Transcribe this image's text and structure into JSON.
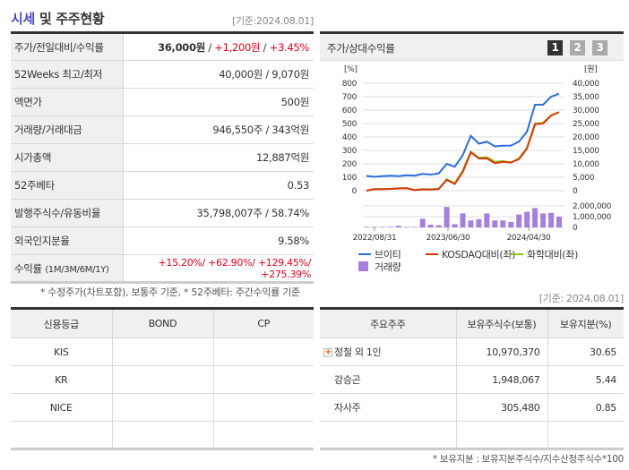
{
  "title": {
    "part1": "시세",
    "part2": " 및 주주현황",
    "basis": "[기준:2024.08.01]"
  },
  "summary": [
    {
      "label": "주가/전일대비/수익률",
      "price": "36,000원",
      "change": "+1,200원",
      "rate": "+3.45%"
    },
    {
      "label": "52Weeks 최고/최저",
      "value": "40,000원 / 9,070원"
    },
    {
      "label": "액면가",
      "value": "500원"
    },
    {
      "label": "거래량/거래대금",
      "value": "946,550주 / 343억원"
    },
    {
      "label": "시가총액",
      "value": "12,887억원"
    },
    {
      "label": "52주베타",
      "value": "0.53"
    },
    {
      "label": "발행주식수/유동비율",
      "value": "35,798,007주 / 58.74%"
    },
    {
      "label": "외국인지분율",
      "value": "9.58%"
    },
    {
      "label": "수익률",
      "label_sub": "(1M/3M/6M/1Y)",
      "value": "+15.20%/ +62.90%/ +129.45%/ +275.39%"
    }
  ],
  "summary_note": "* 수정주가(차트포함), 보통주 기준, * 52주베타: 주간수익률 기준",
  "chart_panel": {
    "title": "주가/상대수익률",
    "pages": [
      "1",
      "2",
      "3"
    ],
    "active_page": "1"
  },
  "chart_data": {
    "type": "line",
    "left_unit": "[%]",
    "right_unit": "[원]",
    "left_ticks": [
      "800",
      "700",
      "600",
      "500",
      "400",
      "300",
      "200",
      "100",
      "0"
    ],
    "right_ticks": [
      "40,000",
      "35,000",
      "30,000",
      "25,000",
      "20,000",
      "15,000",
      "10,000",
      "5,000",
      "0"
    ],
    "volume_ticks": [
      "2,000,000",
      "1,000,000",
      "0"
    ],
    "x_labels": [
      "2022/08/31",
      "2023/06/30",
      "2024/04/30"
    ],
    "ylim_left": [
      0,
      800
    ],
    "ylim_right": [
      0,
      40000
    ],
    "ylim_volume": [
      0,
      2000000
    ],
    "series": [
      {
        "name": "브이티",
        "axis": "right",
        "color": "#2a6fdb",
        "values": [
          5500,
          5150,
          5400,
          5600,
          5400,
          5750,
          5600,
          6250,
          6000,
          6400,
          10000,
          8900,
          13250,
          20400,
          17500,
          18250,
          16500,
          16750,
          16800,
          18250,
          22000,
          32000,
          32000,
          35000,
          36100
        ]
      },
      {
        "name": "KOSDAQ대비(좌)",
        "axis": "left",
        "color": "#d63a0a",
        "values": [
          0,
          12,
          12,
          13,
          17,
          18,
          4,
          10,
          8,
          12,
          80,
          50,
          140,
          285,
          240,
          240,
          205,
          215,
          210,
          235,
          315,
          495,
          500,
          560,
          585
        ]
      },
      {
        "name": "화학대비(좌)",
        "axis": "left",
        "color": "#8cc21a",
        "values": [
          0,
          12,
          12,
          14,
          18,
          20,
          5,
          12,
          10,
          15,
          85,
          55,
          150,
          290,
          245,
          250,
          215,
          220,
          210,
          240,
          320,
          500,
          505,
          560,
          585
        ]
      }
    ],
    "volume": {
      "name": "거래량",
      "color": "#a57fdc",
      "values": [
        50000,
        50000,
        50000,
        50000,
        150000,
        50000,
        50000,
        800000,
        250000,
        200000,
        1900000,
        300000,
        1300000,
        650000,
        750000,
        1300000,
        650000,
        650000,
        500000,
        1200000,
        1450000,
        1800000,
        1300000,
        1350000,
        1000000
      ]
    }
  },
  "credit": {
    "headers": [
      "신용등급",
      "BOND",
      "CP"
    ],
    "rows": [
      [
        "KIS",
        "",
        ""
      ],
      [
        "KR",
        "",
        ""
      ],
      [
        "NICE",
        "",
        ""
      ],
      [
        "",
        "",
        ""
      ]
    ]
  },
  "holders": {
    "basis": "[기준: 2024.08.01]",
    "headers": [
      "주요주주",
      "보유주식수(보통)",
      "보유지분(%)"
    ],
    "rows": [
      [
        "정철 외 1인",
        "10,970,370",
        "30.65"
      ],
      [
        "강승곤",
        "1,948,067",
        "5.44"
      ],
      [
        "자사주",
        "305,480",
        "0.85"
      ],
      [
        "",
        "",
        ""
      ]
    ],
    "note": "* 보유지분 : 보유지분주식수/지수산정주식수*100"
  }
}
